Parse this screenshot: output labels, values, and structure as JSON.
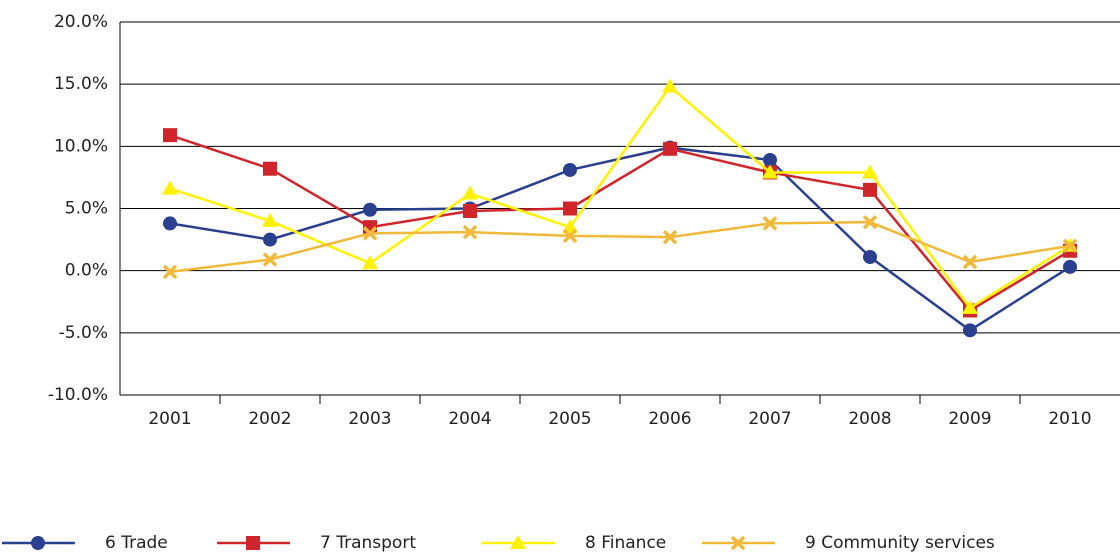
{
  "chart_data": {
    "type": "line",
    "categories": [
      "2001",
      "2002",
      "2003",
      "2004",
      "2005",
      "2006",
      "2007",
      "2008",
      "2009",
      "2010"
    ],
    "series": [
      {
        "name": "6 Trade",
        "color": "#2b3f8f",
        "marker": "circle",
        "values": [
          3.8,
          2.5,
          4.9,
          5.0,
          8.1,
          9.9,
          8.9,
          1.1,
          -4.8,
          0.3
        ]
      },
      {
        "name": "7 Transport",
        "color": "#d0252b",
        "marker": "square",
        "values": [
          10.9,
          8.2,
          3.5,
          4.8,
          5.0,
          9.8,
          7.9,
          6.5,
          -3.2,
          1.6
        ]
      },
      {
        "name": "8 Finance",
        "color": "#fff200",
        "marker": "triangle",
        "values": [
          6.6,
          4.0,
          0.6,
          6.2,
          3.5,
          14.8,
          7.9,
          7.9,
          -3.0,
          2.0
        ]
      },
      {
        "name": "9 Community services",
        "color": "#f0b93a",
        "marker": "cross",
        "values": [
          -0.1,
          0.9,
          3.0,
          3.1,
          2.8,
          2.7,
          3.8,
          3.9,
          0.7,
          2.0
        ]
      }
    ],
    "ylim": [
      -10,
      20
    ],
    "yticks": [
      {
        "value": -10,
        "label": "-10.0%"
      },
      {
        "value": -5,
        "label": "-5.0%"
      },
      {
        "value": 0,
        "label": "0.0%"
      },
      {
        "value": 5,
        "label": "5.0%"
      },
      {
        "value": 10,
        "label": "10.0%"
      },
      {
        "value": 15,
        "label": "15.0%"
      },
      {
        "value": 20,
        "label": "20.0%"
      }
    ],
    "grid": true,
    "legend": "bottom"
  }
}
